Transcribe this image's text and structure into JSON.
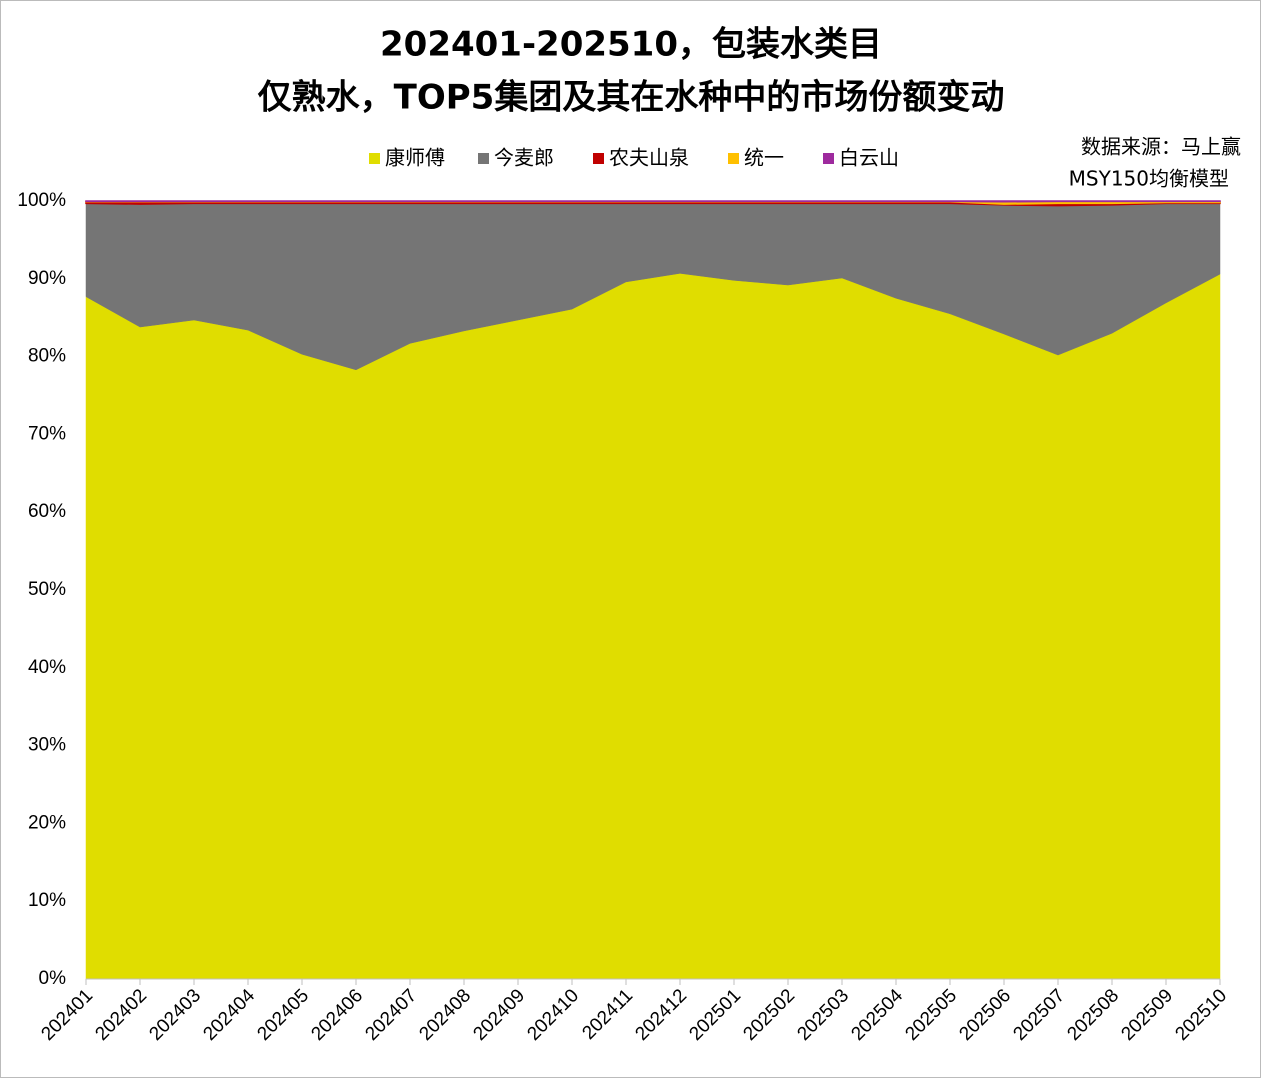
{
  "chart_data": {
    "type": "stacked-area-percent",
    "title": "202401-202510，包装水类目",
    "subtitle": "仅熟水，TOP5集团及其在水种中的市场份额变动",
    "annotations": [
      "数据来源：马上赢",
      "MSY150均衡模型"
    ],
    "categories": [
      "202401",
      "202402",
      "202403",
      "202404",
      "202405",
      "202406",
      "202407",
      "202408",
      "202409",
      "202410",
      "202411",
      "202412",
      "202501",
      "202502",
      "202503",
      "202504",
      "202505",
      "202506",
      "202507",
      "202508",
      "202509",
      "202510"
    ],
    "series": [
      {
        "name": "康师傅",
        "color": "#e0dd00",
        "values": [
          87.7,
          83.8,
          84.7,
          83.4,
          80.3,
          78.3,
          81.7,
          83.3,
          84.7,
          86.1,
          89.6,
          90.7,
          89.8,
          89.2,
          90.1,
          87.5,
          85.5,
          82.9,
          80.2,
          83.0,
          86.9,
          90.6
        ]
      },
      {
        "name": "今麦郎",
        "color": "#757575",
        "values": [
          12.0,
          15.8,
          15.0,
          16.3,
          19.4,
          21.4,
          18.0,
          16.4,
          15.0,
          13.6,
          10.1,
          9.0,
          9.9,
          10.5,
          9.6,
          12.2,
          14.2,
          16.6,
          19.2,
          16.5,
          12.8,
          9.1
        ]
      },
      {
        "name": "农夫山泉",
        "color": "#c00000",
        "values": [
          0.2,
          0.3,
          0.2,
          0.2,
          0.2,
          0.2,
          0.2,
          0.2,
          0.2,
          0.2,
          0.2,
          0.2,
          0.2,
          0.2,
          0.2,
          0.2,
          0.2,
          0.1,
          0.3,
          0.2,
          0.1,
          0.1
        ]
      },
      {
        "name": "统一",
        "color": "#ffc000",
        "values": [
          0.05,
          0.05,
          0.05,
          0.05,
          0.05,
          0.05,
          0.05,
          0.05,
          0.05,
          0.05,
          0.05,
          0.05,
          0.05,
          0.05,
          0.05,
          0.05,
          0.05,
          0.3,
          0.25,
          0.25,
          0.15,
          0.15
        ]
      },
      {
        "name": "白云山",
        "color": "#9e2a9e",
        "values": [
          0.05,
          0.05,
          0.05,
          0.05,
          0.05,
          0.05,
          0.05,
          0.05,
          0.05,
          0.05,
          0.05,
          0.05,
          0.05,
          0.05,
          0.05,
          0.05,
          0.05,
          0.1,
          0.05,
          0.05,
          0.05,
          0.05
        ]
      }
    ],
    "ylim": [
      0,
      100
    ],
    "yticks": [
      {
        "value": 0,
        "label": "0%"
      },
      {
        "value": 10,
        "label": "10%"
      },
      {
        "value": 20,
        "label": "20%"
      },
      {
        "value": 30,
        "label": "30%"
      },
      {
        "value": 40,
        "label": "40%"
      },
      {
        "value": 50,
        "label": "50%"
      },
      {
        "value": 60,
        "label": "60%"
      },
      {
        "value": 70,
        "label": "70%"
      },
      {
        "value": 80,
        "label": "80%"
      },
      {
        "value": 90,
        "label": "90%"
      },
      {
        "value": 100,
        "label": "100%"
      }
    ],
    "grid": false
  }
}
